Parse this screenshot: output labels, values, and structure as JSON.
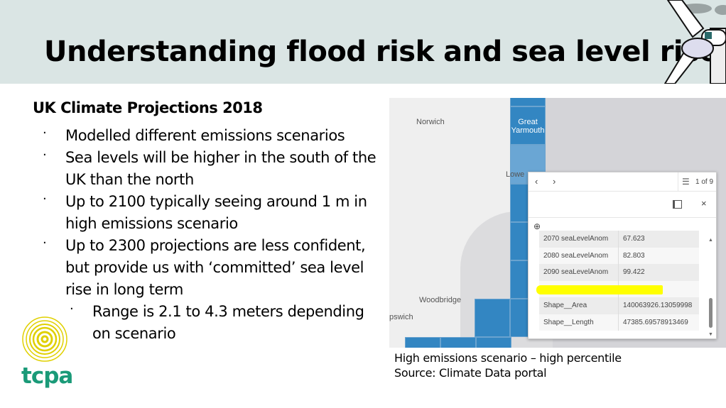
{
  "title": "Understanding flood risk and sea level rise",
  "subtitle": "UK Climate Projections 2018",
  "bullets": [
    "Modelled different emissions scenarios",
    "Sea levels will be higher in the south of the UK than the north",
    "Up to 2100 typically seeing around 1 m in high emissions scenario",
    "Up to 2300 projections are less confident, but provide us with ‘committed’ sea level rise in long term"
  ],
  "sub_bullets": [
    "Range is 2.1 to 4.3 meters depending on scenario"
  ],
  "logo_text": "tcpa",
  "map": {
    "labels": {
      "norwich": "Norwich",
      "great_yarmouth": "Great Yarmouth",
      "lowestoft": "Lowe",
      "woodbridge": "Woodbridge",
      "ipswich": "pswich"
    },
    "popup": {
      "pager": "1 of 9",
      "rows": [
        {
          "field": "2070 seaLevelAnom",
          "value": "67.623"
        },
        {
          "field": "2080 seaLevelAnom",
          "value": "82.803"
        },
        {
          "field": "2090 seaLevelAnom",
          "value": "99.422"
        },
        {
          "field": "",
          "value": ""
        },
        {
          "field": "Shape__Area",
          "value": "140063926.13059998"
        },
        {
          "field": "Shape__Length",
          "value": "47385.69578913469"
        }
      ]
    }
  },
  "caption": {
    "line1": "High emissions scenario – high percentile",
    "line2": "Source: Climate Data portal"
  },
  "colors": {
    "header": "#dae5e4",
    "cell": "#3386c2",
    "highlight": "#ffff00",
    "logo_green": "#1a9a78",
    "logo_yellow": "#e0d000"
  }
}
